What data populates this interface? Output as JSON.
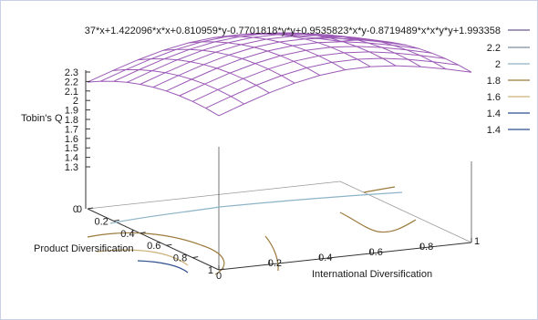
{
  "chart_data": {
    "type": "surface-3d",
    "function_label": "37*x+1.422096*x*x+0.810959*y-0.7701818*y*y+0.9535823*x*y-0.8719489*x*x*y*y+1.993358",
    "zlabel": "Tobin's Q",
    "xlabel": "International Diversification",
    "ylabel": "Product Diversification",
    "x_ticks": [
      "0",
      "0.2",
      "0.4",
      "0.6",
      "0.8",
      "1"
    ],
    "y_ticks": [
      "0",
      "0.2",
      "0.4",
      "0.6",
      "0.8",
      "1"
    ],
    "z_ticks": [
      "1.3",
      "1.4",
      "1.5",
      "1.6",
      "1.7",
      "1.8",
      "1.9",
      "2",
      "2.1",
      "2.2",
      "2.3"
    ],
    "xlim": [
      0,
      1
    ],
    "ylim": [
      0,
      1
    ],
    "zlim": [
      1.3,
      2.3
    ],
    "surface_color": "#9b59b6",
    "contours": [
      {
        "level": "2.2",
        "color": "#7f8fa3"
      },
      {
        "level": "2",
        "color": "#8cb3c7"
      },
      {
        "level": "1.8",
        "color": "#9c7b3d"
      },
      {
        "level": "1.6",
        "color": "#cdb27a"
      },
      {
        "level": "1.4",
        "color": "#2f4f8f"
      }
    ],
    "surface_line_color": "#6e5a8c",
    "legend_position": "top-right"
  }
}
